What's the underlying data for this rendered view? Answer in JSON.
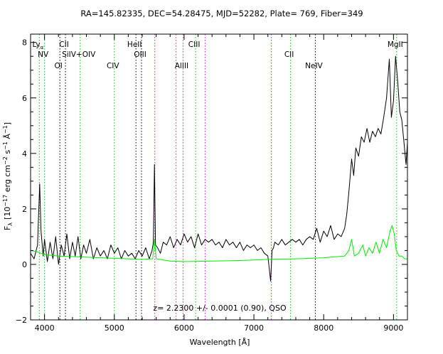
{
  "chart_data": {
    "type": "line",
    "title": "RA=145.82335, DEC=54.28475, MJD=52282, Plate= 769, Fiber=349",
    "xlabel": "Wavelength [Å]",
    "ylabel": "F",
    "ylabel_sub": "λ",
    "ylabel_unit": "[10",
    "ylabel_exp1": "−17",
    "ylabel_mid": " erg cm",
    "ylabel_exp2": "−2",
    "ylabel_mid2": " s",
    "ylabel_exp3": "−1",
    "ylabel_mid3": " Å",
    "ylabel_exp4": "−1",
    "ylabel_end": "]",
    "annotation": "z= 2.2300 +/- 0.0001 (0.90), QSO",
    "xlim": [
      3800,
      9200
    ],
    "ylim": [
      -2,
      8.3
    ],
    "x_ticks": [
      4000,
      5000,
      6000,
      7000,
      8000,
      9000
    ],
    "x_tick_labels": [
      "4000",
      "5000",
      "6000",
      "7000",
      "8000",
      "9000"
    ],
    "y_ticks": [
      -2,
      0,
      2,
      4,
      6,
      8
    ],
    "y_tick_labels": [
      "−2",
      "0",
      "2",
      "4",
      "6",
      "8"
    ],
    "colors": {
      "flux": "#000000",
      "error": "#00ee00",
      "emission": "#000000",
      "absorption": "#00cc00",
      "sky": "#ff00ff"
    },
    "lines": [
      {
        "x": 3926,
        "label": "Ly",
        "sub": "α",
        "row": 1,
        "style": "green"
      },
      {
        "x": 4000,
        "label": "NV",
        "row": 2,
        "style": "green"
      },
      {
        "x": 4220,
        "label": "OI",
        "row": 3,
        "style": "black"
      },
      {
        "x": 4300,
        "label": "CII",
        "row": 1,
        "style": "black"
      },
      {
        "x": 4510,
        "label": "SiIV+OIV",
        "row": 2,
        "style": "green"
      },
      {
        "x": 5000,
        "label": "CIV",
        "row": 3,
        "style": "green"
      },
      {
        "x": 5310,
        "label": "HeII",
        "row": 1,
        "style": "black"
      },
      {
        "x": 5390,
        "label": "OIII",
        "row": 2,
        "style": "black"
      },
      {
        "x": 5580,
        "label": "",
        "style": "magenta"
      },
      {
        "x": 5885,
        "label": "",
        "style": "magenta"
      },
      {
        "x": 5985,
        "label": "AlIII",
        "row": 3,
        "style": "magenta"
      },
      {
        "x": 6165,
        "label": "CIII",
        "row": 1,
        "style": "green"
      },
      {
        "x": 6300,
        "label": "",
        "style": "magenta"
      },
      {
        "x": 7250,
        "label": "",
        "style": "magenta"
      },
      {
        "x": 7525,
        "label": "CII",
        "row": 2,
        "style": "green"
      },
      {
        "x": 7880,
        "label": "NeIV",
        "row": 3,
        "style": "black"
      },
      {
        "x": 9045,
        "label": "MgII",
        "row": 1,
        "style": "green"
      }
    ],
    "series": [
      {
        "id": "flux",
        "x": [
          3800,
          3850,
          3900,
          3930,
          3950,
          3980,
          4000,
          4040,
          4080,
          4120,
          4160,
          4200,
          4240,
          4280,
          4320,
          4360,
          4400,
          4440,
          4480,
          4520,
          4560,
          4600,
          4650,
          4700,
          4750,
          4800,
          4850,
          4900,
          4950,
          5000,
          5050,
          5100,
          5150,
          5200,
          5250,
          5300,
          5350,
          5400,
          5450,
          5500,
          5540,
          5560,
          5575,
          5590,
          5620,
          5660,
          5700,
          5750,
          5800,
          5850,
          5900,
          5950,
          6000,
          6050,
          6100,
          6150,
          6200,
          6250,
          6300,
          6350,
          6400,
          6450,
          6500,
          6550,
          6600,
          6650,
          6700,
          6750,
          6800,
          6850,
          6900,
          6950,
          7000,
          7050,
          7100,
          7150,
          7200,
          7240,
          7260,
          7280,
          7300,
          7350,
          7400,
          7450,
          7500,
          7550,
          7600,
          7650,
          7700,
          7750,
          7800,
          7850,
          7900,
          7950,
          8000,
          8050,
          8100,
          8150,
          8200,
          8250,
          8300,
          8330,
          8360,
          8400,
          8430,
          8460,
          8500,
          8540,
          8580,
          8620,
          8660,
          8700,
          8740,
          8780,
          8820,
          8860,
          8900,
          8940,
          8970,
          9000,
          9030,
          9060,
          9090,
          9120,
          9150,
          9180,
          9200
        ],
        "y": [
          0.4,
          0.2,
          0.7,
          2.9,
          1.2,
          0.3,
          0.9,
          0.1,
          0.8,
          0.2,
          1.0,
          0.0,
          0.7,
          0.3,
          1.1,
          0.2,
          0.8,
          0.3,
          1.0,
          0.2,
          0.7,
          0.4,
          0.9,
          0.2,
          0.6,
          0.3,
          0.5,
          0.2,
          0.7,
          0.4,
          0.6,
          0.2,
          0.5,
          0.3,
          0.4,
          0.2,
          0.5,
          0.3,
          0.6,
          0.2,
          0.5,
          0.8,
          3.6,
          0.7,
          0.6,
          0.4,
          0.8,
          0.7,
          1.0,
          0.6,
          0.9,
          0.7,
          1.1,
          0.8,
          1.0,
          0.6,
          1.1,
          0.7,
          0.9,
          0.8,
          0.9,
          0.7,
          0.8,
          0.6,
          0.9,
          0.7,
          0.8,
          0.6,
          0.8,
          0.5,
          0.7,
          0.6,
          0.7,
          0.5,
          0.6,
          0.4,
          0.3,
          -0.6,
          0.5,
          0.6,
          0.8,
          0.7,
          0.9,
          0.7,
          0.8,
          0.9,
          0.8,
          0.9,
          0.7,
          0.9,
          1.0,
          0.9,
          1.3,
          0.8,
          1.2,
          1.0,
          1.4,
          0.9,
          1.1,
          1.0,
          1.3,
          1.8,
          2.6,
          3.8,
          3.2,
          4.2,
          3.9,
          4.6,
          4.4,
          4.9,
          4.4,
          4.8,
          4.6,
          4.9,
          4.7,
          5.3,
          6.0,
          7.4,
          5.3,
          5.9,
          7.5,
          6.6,
          5.5,
          5.2,
          4.4,
          3.6,
          4.4
        ]
      },
      {
        "id": "error",
        "x": [
          3800,
          3900,
          4000,
          4200,
          4400,
          4600,
          4800,
          5000,
          5200,
          5400,
          5550,
          5575,
          5600,
          5800,
          6000,
          6200,
          6400,
          6600,
          6800,
          7000,
          7200,
          7400,
          7600,
          7800,
          8000,
          8100,
          8200,
          8300,
          8360,
          8400,
          8440,
          8500,
          8560,
          8600,
          8650,
          8700,
          8750,
          8800,
          8850,
          8900,
          8950,
          8980,
          9010,
          9040,
          9080,
          9120,
          9160,
          9200
        ],
        "y": [
          0.5,
          0.45,
          0.35,
          0.3,
          0.28,
          0.26,
          0.24,
          0.22,
          0.2,
          0.18,
          0.2,
          0.9,
          0.2,
          0.12,
          0.1,
          0.11,
          0.12,
          0.13,
          0.14,
          0.16,
          0.18,
          0.19,
          0.2,
          0.22,
          0.24,
          0.26,
          0.28,
          0.3,
          0.5,
          0.9,
          0.3,
          0.4,
          0.7,
          0.3,
          0.6,
          0.4,
          0.8,
          0.4,
          0.9,
          0.6,
          1.2,
          1.4,
          1.1,
          0.5,
          0.3,
          0.3,
          0.2,
          0.2
        ]
      }
    ]
  }
}
